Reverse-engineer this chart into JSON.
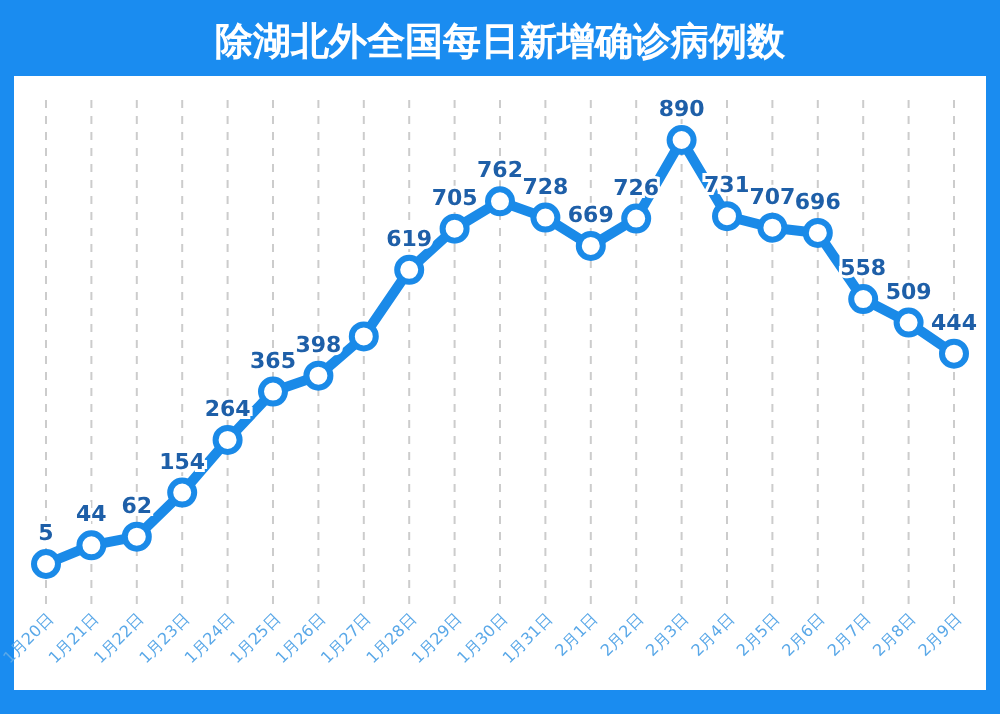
{
  "chart_data": {
    "type": "line",
    "title": "除湖北外全国每日新增确诊病例数",
    "categories": [
      "1月20日",
      "1月21日",
      "1月22日",
      "1月23日",
      "1月24日",
      "1月25日",
      "1月26日",
      "1月27日",
      "1月28日",
      "1月29日",
      "1月30日",
      "1月31日",
      "2月1日",
      "2月2日",
      "2月3日",
      "2月4日",
      "2月5日",
      "2月6日",
      "2月7日",
      "2月8日",
      "2月9日"
    ],
    "series": [
      {
        "color": "#1a8ae8",
        "values": [
          5,
          44,
          62,
          154,
          264,
          365,
          398,
          480,
          619,
          705,
          762,
          728,
          669,
          726,
          890,
          731,
          707,
          696,
          558,
          509,
          444
        ],
        "value_labels": [
          "5",
          "44",
          "62",
          "154",
          "264",
          "365",
          "398",
          null,
          "619",
          "705",
          "762",
          "728",
          "669",
          "726",
          "890",
          "731",
          "707",
          "696",
          "558",
          "509",
          "444"
        ]
      }
    ],
    "tick_labels": "x",
    "grid": "x",
    "marker": "circle",
    "line_style": "solid"
  }
}
